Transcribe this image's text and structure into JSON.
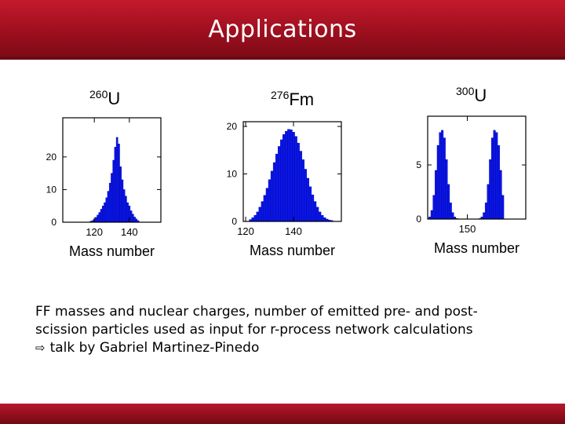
{
  "header": {
    "title": "Applications"
  },
  "colors": {
    "bar": "#0a16e6",
    "bar_edge": "#0000a0",
    "header": "#9c0f1e"
  },
  "chart_data": [
    {
      "type": "bar",
      "nucleus": {
        "mass": "260",
        "symbol": "U"
      },
      "xlabel": "Mass number",
      "xticks": [
        "120",
        "140"
      ],
      "yticks": [
        "0",
        "10",
        "20"
      ],
      "xlim": [
        102,
        158
      ],
      "ylim": [
        0,
        32
      ],
      "x": [
        118,
        119,
        120,
        121,
        122,
        123,
        124,
        125,
        126,
        127,
        128,
        129,
        130,
        131,
        132,
        133,
        134,
        135,
        136,
        137,
        138,
        139,
        140,
        141,
        142,
        143,
        144,
        145
      ],
      "values": [
        0.3,
        0.5,
        0.9,
        1.5,
        2.2,
        3,
        4,
        5,
        6,
        7.5,
        9.5,
        12,
        15,
        19,
        23,
        26,
        24,
        17,
        13,
        10,
        8,
        6,
        5,
        3.5,
        2.5,
        1.6,
        1,
        0.5
      ]
    },
    {
      "type": "bar",
      "nucleus": {
        "mass": "276",
        "symbol": "Fm"
      },
      "xlabel": "Mass number",
      "xticks": [
        "120",
        "140"
      ],
      "yticks": [
        "0",
        "10",
        "20"
      ],
      "xlim": [
        119,
        160
      ],
      "ylim": [
        0,
        21
      ],
      "x": [
        122,
        123,
        124,
        125,
        126,
        127,
        128,
        129,
        130,
        131,
        132,
        133,
        134,
        135,
        136,
        137,
        138,
        139,
        140,
        141,
        142,
        143,
        144,
        145,
        146,
        147,
        148,
        149,
        150,
        151,
        152,
        153,
        154,
        155,
        156
      ],
      "values": [
        0.4,
        0.8,
        1.3,
        2,
        3,
        4.2,
        5.5,
        7,
        8.8,
        10.6,
        12.4,
        14.2,
        15.8,
        17.2,
        18.3,
        19,
        19.4,
        19.3,
        18.8,
        17.9,
        16.5,
        14.8,
        13,
        11,
        9.1,
        7.3,
        5.6,
        4.2,
        3,
        2,
        1.3,
        0.8,
        0.5,
        0.3,
        0.2
      ]
    },
    {
      "type": "bar",
      "nucleus": {
        "mass": "300",
        "symbol": "U"
      },
      "xlabel": "Mass number",
      "xticks": [
        "150"
      ],
      "yticks": [
        "0",
        "5"
      ],
      "xlim": [
        131,
        178
      ],
      "ylim": [
        0,
        9.5
      ],
      "x": [
        132,
        133,
        134,
        135,
        136,
        137,
        138,
        139,
        140,
        141,
        142,
        143,
        144,
        145,
        146,
        147,
        148,
        149,
        150,
        151,
        152,
        153,
        154,
        155,
        156,
        157,
        158,
        159,
        160,
        161,
        162,
        163,
        164,
        165,
        166,
        167
      ],
      "values": [
        0.2,
        0.8,
        2.2,
        4.5,
        6.8,
        8,
        8.2,
        7.5,
        5.5,
        3.2,
        1.5,
        0.6,
        0.2,
        0.05,
        0,
        0,
        0,
        0,
        0,
        0,
        0,
        0,
        0,
        0,
        0.05,
        0.2,
        0.6,
        1.5,
        3.2,
        5.5,
        7.5,
        8.2,
        8,
        6.8,
        4.5,
        2.2
      ]
    }
  ],
  "caption": {
    "line1": "FF masses and nuclear charges, number of emitted pre- and post-",
    "line2": "scission particles used as input for r-process network calculations",
    "line3": "talk by Gabriel Martinez-Pinedo"
  }
}
